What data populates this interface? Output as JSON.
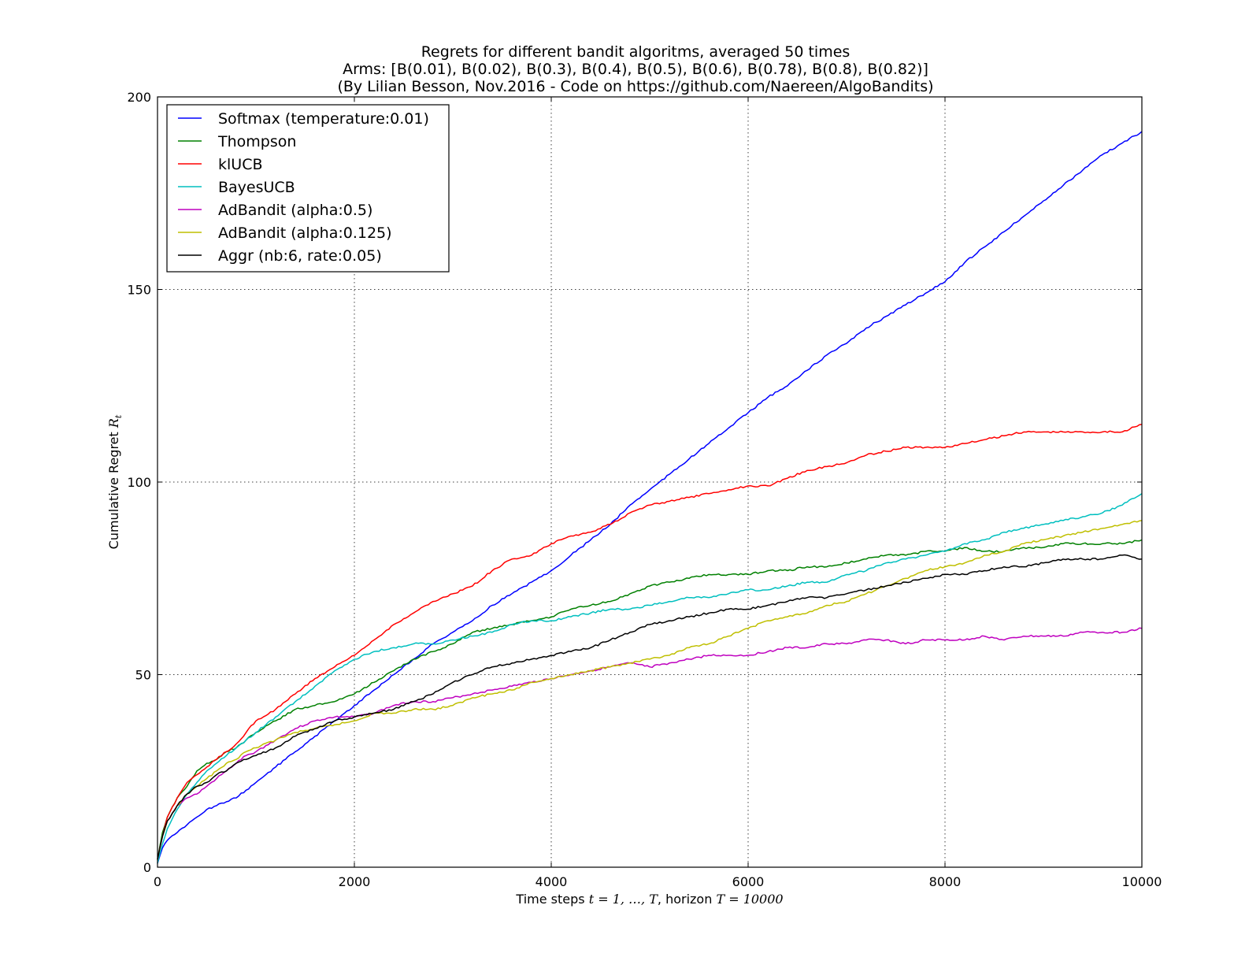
{
  "chart_data": {
    "type": "line",
    "title_lines": [
      "Regrets for different bandit algoritms, averaged 50 times",
      "Arms: [B(0.01), B(0.02), B(0.3), B(0.4), B(0.5), B(0.6), B(0.78), B(0.8), B(0.82)]",
      "(By Lilian Besson, Nov.2016 - Code on https://github.com/Naereen/AlgoBandits)"
    ],
    "xlabel": {
      "prefix": "Time steps ",
      "math1": "t = 1, …, T",
      "middle": ", horizon ",
      "math2": "T = 10000"
    },
    "ylabel": {
      "prefix": "Cumulative Regret ",
      "math": "R",
      "sub": "t"
    },
    "xlim": [
      0,
      10000
    ],
    "ylim": [
      0,
      200
    ],
    "xticks": [
      0,
      2000,
      4000,
      6000,
      8000,
      10000
    ],
    "yticks": [
      0,
      50,
      100,
      150,
      200
    ],
    "grid": true,
    "legend_position": "top-left",
    "series": [
      {
        "name": "Softmax (temperature:0.01)",
        "color": "#0000ff",
        "x": [
          0,
          50,
          100,
          200,
          300,
          400,
          500,
          600,
          700,
          800,
          900,
          1000,
          1100,
          1200,
          1300,
          1400,
          1500,
          1600,
          1700,
          1800,
          1900,
          2000,
          2200,
          2400,
          2600,
          2800,
          3000,
          3200,
          3400,
          3600,
          3800,
          4000,
          4200,
          4400,
          4600,
          4800,
          5000,
          5200,
          5400,
          5600,
          5800,
          6000,
          6200,
          6400,
          6600,
          6800,
          7000,
          7200,
          7400,
          7600,
          7800,
          8000,
          8200,
          8400,
          8600,
          8800,
          9000,
          9200,
          9400,
          9600,
          9800,
          10000
        ],
        "y": [
          1,
          5,
          7,
          9,
          11,
          13,
          15,
          16,
          17,
          18,
          20,
          22,
          24,
          26,
          28,
          30,
          32,
          34,
          36,
          38,
          40,
          42,
          46,
          50,
          54,
          58,
          61,
          64,
          68,
          71,
          74,
          77,
          81,
          85,
          89,
          94,
          98,
          102,
          106,
          110,
          114,
          118,
          122,
          125,
          129,
          133,
          136,
          140,
          143,
          146,
          149,
          152,
          157,
          161,
          165,
          169,
          173,
          177,
          181,
          185,
          188,
          191
        ]
      },
      {
        "name": "Thompson",
        "color": "#008000",
        "x": [
          0,
          50,
          100,
          200,
          300,
          400,
          500,
          600,
          700,
          800,
          900,
          1000,
          1200,
          1400,
          1600,
          1800,
          2000,
          2200,
          2400,
          2600,
          2800,
          3000,
          3200,
          3400,
          3600,
          3800,
          4000,
          4200,
          4400,
          4600,
          4800,
          5000,
          5200,
          5400,
          5600,
          5800,
          6000,
          6200,
          6400,
          6600,
          6800,
          7000,
          7200,
          7400,
          7600,
          7800,
          8000,
          8200,
          8400,
          8600,
          8800,
          9000,
          9200,
          9400,
          9600,
          9800,
          10000
        ],
        "y": [
          2,
          9,
          13,
          18,
          21,
          25,
          27,
          28,
          30,
          31,
          33,
          35,
          38,
          41,
          42,
          43,
          45,
          48,
          51,
          54,
          56,
          58,
          61,
          62,
          63,
          64,
          65,
          67,
          68,
          69,
          71,
          73,
          74,
          75,
          76,
          76,
          76,
          77,
          77,
          78,
          78,
          79,
          80,
          81,
          81,
          82,
          82,
          83,
          82,
          82,
          83,
          83,
          84,
          84,
          84,
          84,
          85
        ]
      },
      {
        "name": "klUCB",
        "color": "#ff0000",
        "x": [
          0,
          50,
          100,
          200,
          300,
          400,
          500,
          600,
          700,
          800,
          900,
          1000,
          1200,
          1400,
          1600,
          1800,
          2000,
          2200,
          2400,
          2600,
          2800,
          3000,
          3200,
          3400,
          3600,
          3800,
          4000,
          4200,
          4400,
          4600,
          4800,
          5000,
          5200,
          5400,
          5600,
          5800,
          6000,
          6200,
          6400,
          6600,
          6800,
          7000,
          7200,
          7400,
          7600,
          7800,
          8000,
          8200,
          8400,
          8600,
          8800,
          9000,
          9200,
          9400,
          9600,
          9800,
          10000
        ],
        "y": [
          2,
          8,
          13,
          18,
          22,
          24,
          26,
          28,
          30,
          32,
          35,
          38,
          41,
          45,
          49,
          52,
          55,
          59,
          63,
          66,
          69,
          71,
          73,
          77,
          80,
          81,
          84,
          86,
          87,
          89,
          92,
          94,
          95,
          96,
          97,
          98,
          99,
          99,
          101,
          103,
          104,
          105,
          107,
          108,
          109,
          109,
          109,
          110,
          111,
          112,
          113,
          113,
          113,
          113,
          113,
          113,
          115
        ]
      },
      {
        "name": "BayesUCB",
        "color": "#00bfbf",
        "x": [
          0,
          50,
          100,
          200,
          300,
          400,
          500,
          600,
          700,
          800,
          900,
          1000,
          1200,
          1400,
          1600,
          1800,
          2000,
          2200,
          2400,
          2600,
          2800,
          3000,
          3200,
          3400,
          3600,
          3800,
          4000,
          4200,
          4400,
          4600,
          4800,
          5000,
          5200,
          5400,
          5600,
          5800,
          6000,
          6200,
          6400,
          6600,
          6800,
          7000,
          7200,
          7400,
          7600,
          7800,
          8000,
          8200,
          8400,
          8600,
          8800,
          9000,
          9200,
          9400,
          9600,
          9800,
          10000
        ],
        "y": [
          1,
          6,
          10,
          15,
          19,
          22,
          25,
          27,
          29,
          31,
          33,
          35,
          39,
          43,
          47,
          51,
          54,
          56,
          57,
          58,
          58,
          59,
          60,
          61,
          63,
          64,
          64,
          65,
          66,
          67,
          67,
          68,
          69,
          70,
          70,
          71,
          72,
          72,
          73,
          74,
          74,
          76,
          77,
          79,
          80,
          81,
          82,
          84,
          85,
          87,
          88,
          89,
          90,
          91,
          92,
          94,
          97
        ]
      },
      {
        "name": "AdBandit (alpha:0.5)",
        "color": "#bf00bf",
        "x": [
          0,
          50,
          100,
          200,
          300,
          400,
          500,
          600,
          700,
          800,
          900,
          1000,
          1200,
          1400,
          1600,
          1800,
          2000,
          2200,
          2400,
          2600,
          2800,
          3000,
          3200,
          3400,
          3600,
          3800,
          4000,
          4200,
          4400,
          4600,
          4800,
          5000,
          5200,
          5400,
          5600,
          5800,
          6000,
          6200,
          6400,
          6600,
          6800,
          7000,
          7200,
          7400,
          7600,
          7800,
          8000,
          8200,
          8400,
          8600,
          8800,
          9000,
          9200,
          9400,
          9600,
          9800,
          10000
        ],
        "y": [
          2,
          8,
          12,
          16,
          18,
          19,
          21,
          23,
          25,
          27,
          29,
          30,
          33,
          36,
          38,
          39,
          39,
          40,
          42,
          43,
          43,
          44,
          45,
          46,
          47,
          48,
          49,
          50,
          51,
          52,
          53,
          52,
          53,
          54,
          55,
          55,
          55,
          56,
          57,
          57,
          58,
          58,
          59,
          59,
          58,
          59,
          59,
          59,
          60,
          59,
          60,
          60,
          60,
          61,
          61,
          61,
          62
        ]
      },
      {
        "name": "AdBandit (alpha:0.125)",
        "color": "#bfbf00",
        "x": [
          0,
          50,
          100,
          200,
          300,
          400,
          500,
          600,
          700,
          800,
          900,
          1000,
          1200,
          1400,
          1600,
          1800,
          2000,
          2200,
          2400,
          2600,
          2800,
          3000,
          3200,
          3400,
          3600,
          3800,
          4000,
          4200,
          4400,
          4600,
          4800,
          5000,
          5200,
          5400,
          5600,
          5800,
          6000,
          6200,
          6400,
          6600,
          6800,
          7000,
          7200,
          7400,
          7600,
          7800,
          8000,
          8200,
          8400,
          8600,
          8800,
          9000,
          9200,
          9400,
          9600,
          9800,
          10000
        ],
        "y": [
          2,
          8,
          12,
          16,
          19,
          21,
          23,
          25,
          27,
          28,
          30,
          31,
          33,
          35,
          36,
          37,
          38,
          40,
          40,
          41,
          41,
          42,
          44,
          45,
          46,
          48,
          49,
          50,
          51,
          52,
          53,
          54,
          55,
          57,
          58,
          60,
          62,
          64,
          65,
          66,
          68,
          69,
          71,
          73,
          75,
          77,
          78,
          79,
          81,
          82,
          84,
          85,
          86,
          87,
          88,
          89,
          90
        ]
      },
      {
        "name": "Aggr (nb:6, rate:0.05)",
        "color": "#000000",
        "x": [
          0,
          50,
          100,
          200,
          300,
          400,
          500,
          600,
          700,
          800,
          900,
          1000,
          1200,
          1400,
          1600,
          1800,
          2000,
          2200,
          2400,
          2600,
          2800,
          3000,
          3200,
          3400,
          3600,
          3800,
          4000,
          4200,
          4400,
          4600,
          4800,
          5000,
          5200,
          5400,
          5600,
          5800,
          6000,
          6200,
          6400,
          6600,
          6800,
          7000,
          7200,
          7400,
          7600,
          7800,
          8000,
          8200,
          8400,
          8600,
          8800,
          9000,
          9200,
          9400,
          9600,
          9800,
          10000
        ],
        "y": [
          2,
          8,
          12,
          16,
          19,
          21,
          22,
          24,
          25,
          27,
          28,
          29,
          31,
          34,
          36,
          38,
          39,
          40,
          41,
          43,
          45,
          48,
          50,
          52,
          53,
          54,
          55,
          56,
          57,
          59,
          61,
          63,
          64,
          65,
          66,
          67,
          67,
          68,
          69,
          70,
          70,
          71,
          72,
          73,
          74,
          75,
          76,
          76,
          77,
          78,
          78,
          79,
          80,
          80,
          80,
          81,
          80
        ]
      }
    ]
  }
}
